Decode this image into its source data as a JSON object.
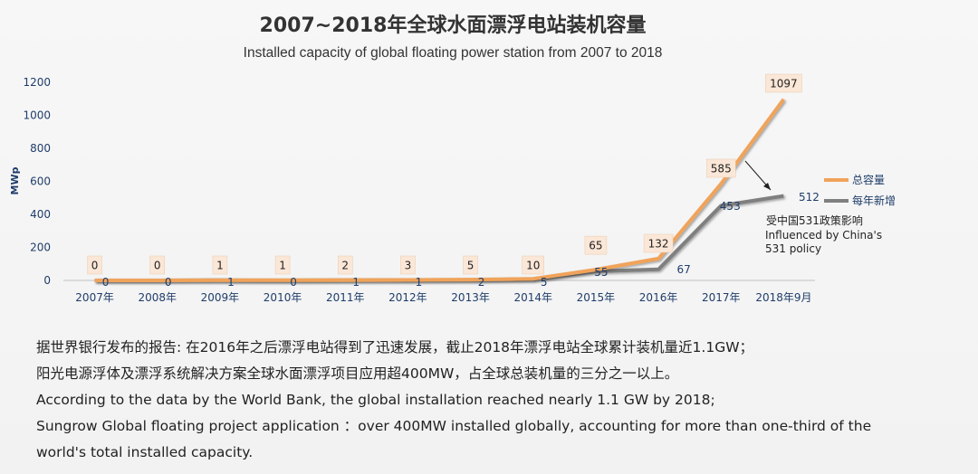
{
  "title_zh": "2007~2018年全球水面漂浮电站装机容量",
  "title_en": "Installed capacity of global floating power station from 2007 to 2018",
  "chart_data": {
    "type": "line",
    "categories": [
      "2007年",
      "2008年",
      "2009年",
      "2010年",
      "2011年",
      "2012年",
      "2013年",
      "2014年",
      "2015年",
      "2016年",
      "2017年",
      "2018年9月"
    ],
    "series": [
      {
        "name": "总容量",
        "values": [
          0,
          0,
          1,
          1,
          2,
          3,
          5,
          10,
          65,
          132,
          585,
          1097
        ],
        "color": "#f0a35a"
      },
      {
        "name": "每年新增",
        "values": [
          0,
          0,
          1,
          0,
          1,
          1,
          2,
          5,
          55,
          67,
          453,
          512
        ],
        "color": "#7f7f7f"
      }
    ],
    "ylabel": "MWp",
    "ylim": [
      0,
      1200
    ],
    "yticks": [
      0,
      200,
      400,
      600,
      800,
      1000,
      1200
    ],
    "grid": false,
    "legend": "right",
    "annotation": {
      "zh": "受中国531政策影响",
      "en": [
        "Influenced by China's",
        "531 policy"
      ]
    }
  },
  "description": [
    "据世界银行发布的报告: 在2016年之后漂浮电站得到了迅速发展，截止2018年漂浮电站全球累计装机量近1.1GW；",
    "阳光电源浮体及漂浮系统解决方案全球水面漂浮项目应用超400MW，占全球总装机量的三分之一以上。",
    "According to the data by the World Bank, the global installation reached nearly 1.1 GW by 2018;",
    "Sungrow Global  floating project application  ：over 400MW installed globally, accounting for more than one-third of the",
    "world's total installed capacity."
  ]
}
